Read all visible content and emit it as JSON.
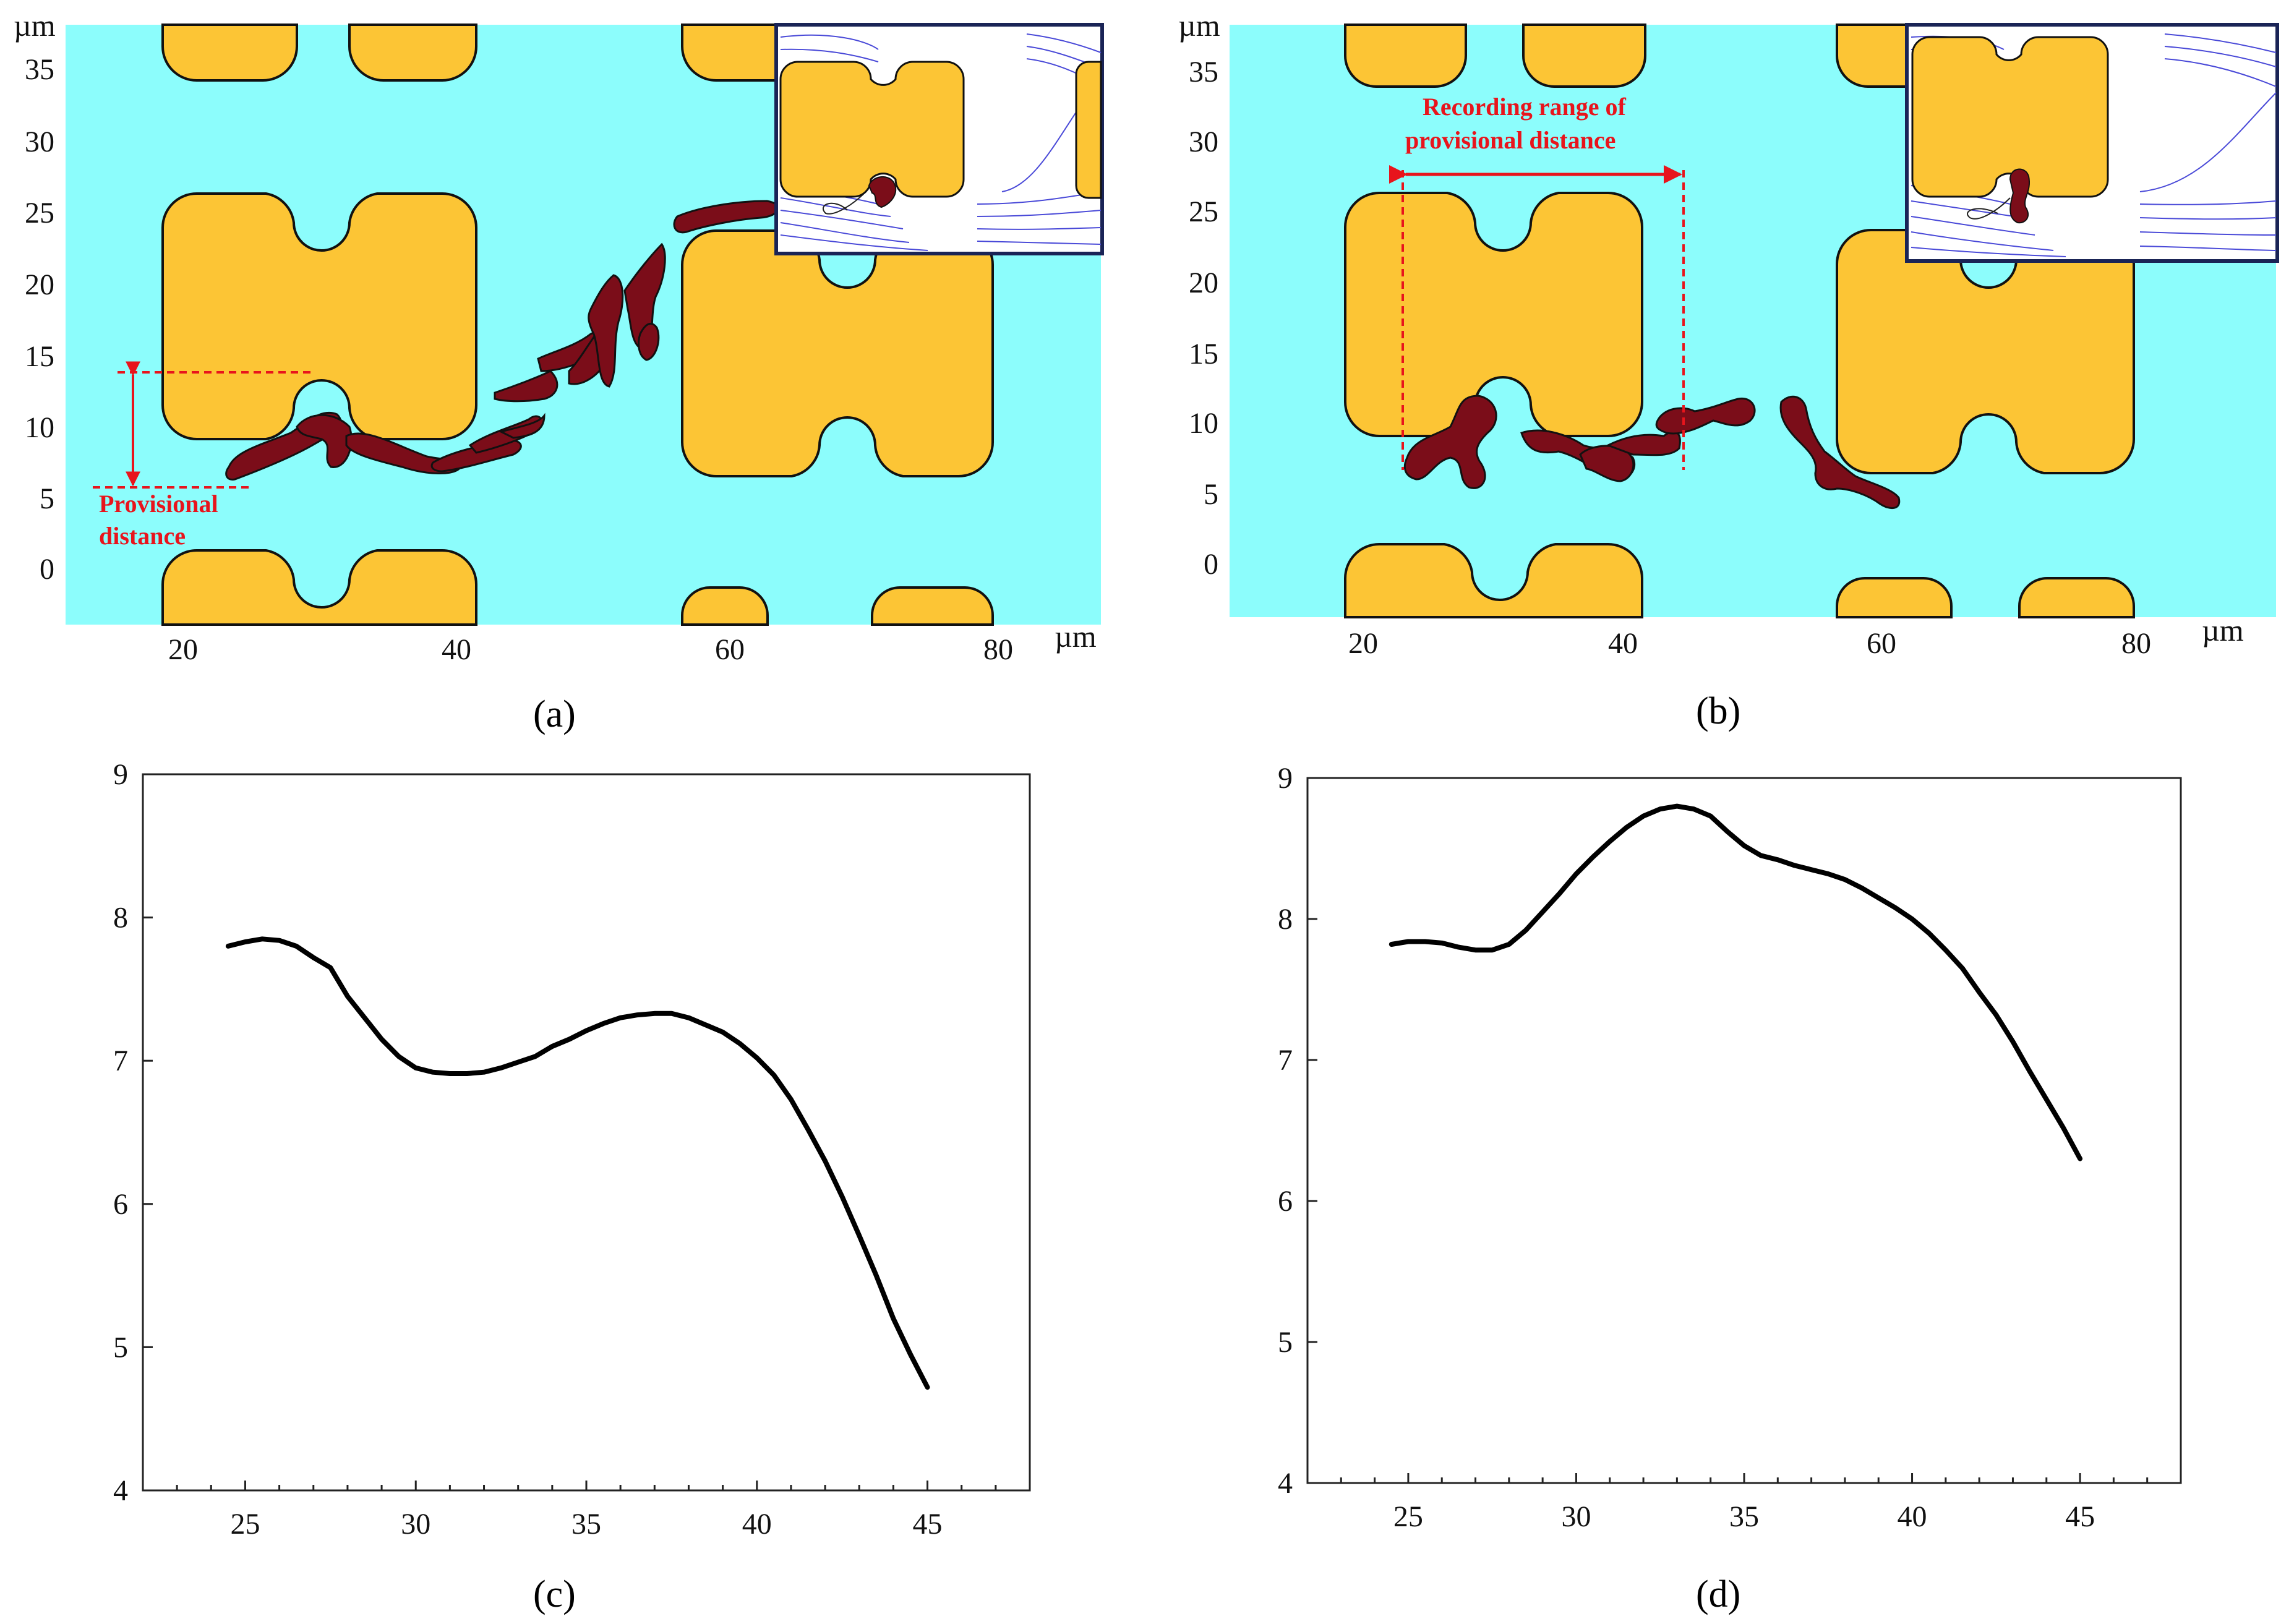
{
  "colors": {
    "fluid": "#8cfdfc",
    "obstacle": "#fcc535",
    "droplet": "#7b0d19",
    "annotation": "#e8141c",
    "streamline": "#4a4ad8",
    "curve": "#000000"
  },
  "chart_data": [
    {
      "type": "diagram",
      "panel": "(a)",
      "unit_x": "µm",
      "unit_y": "µm",
      "xlim": [
        11,
        87
      ],
      "ylim": [
        -4,
        38
      ],
      "x_ticks": [
        "20",
        "40",
        "60",
        "80"
      ],
      "y_ticks": [
        "0",
        "5",
        "10",
        "15",
        "20",
        "25",
        "30",
        "35"
      ],
      "annotation": [
        "Provisional",
        "distance"
      ]
    },
    {
      "type": "diagram",
      "panel": "(b)",
      "unit_x": "µm",
      "unit_y": "µm",
      "xlim": [
        10,
        88
      ],
      "ylim": [
        -4,
        38
      ],
      "x_ticks": [
        "20",
        "40",
        "60",
        "80"
      ],
      "y_ticks": [
        "0",
        "5",
        "10",
        "15",
        "20",
        "25",
        "30",
        "35"
      ],
      "annotation": [
        "Recording range of",
        "provisional distance"
      ]
    },
    {
      "type": "line",
      "panel": "(c)",
      "xlim": [
        22,
        48
      ],
      "ylim": [
        4,
        9
      ],
      "x_ticks": [
        "25",
        "30",
        "35",
        "40",
        "45"
      ],
      "y_ticks": [
        "4",
        "5",
        "6",
        "7",
        "8",
        "9"
      ],
      "series": [
        {
          "x": [
            24.5,
            25.0,
            25.5,
            26.0,
            26.5,
            27.0,
            27.5,
            28.0,
            28.5,
            29.0,
            29.5,
            30.0,
            30.5,
            31.0,
            31.5,
            32.0,
            32.5,
            33.0,
            33.5,
            34.0,
            34.5,
            35.0,
            35.5,
            36.0,
            36.5,
            37.0,
            37.5,
            38.0,
            38.5,
            39.0,
            39.5,
            40.0,
            40.5,
            41.0,
            41.5,
            42.0,
            42.5,
            43.0,
            43.5,
            44.0,
            44.5,
            45.0
          ],
          "y": [
            7.8,
            7.83,
            7.85,
            7.84,
            7.8,
            7.72,
            7.65,
            7.45,
            7.3,
            7.15,
            7.03,
            6.95,
            6.92,
            6.91,
            6.91,
            6.92,
            6.95,
            6.99,
            7.03,
            7.1,
            7.15,
            7.21,
            7.26,
            7.3,
            7.32,
            7.33,
            7.33,
            7.3,
            7.25,
            7.2,
            7.12,
            7.02,
            6.9,
            6.73,
            6.52,
            6.3,
            6.05,
            5.78,
            5.5,
            5.2,
            4.95,
            4.72
          ]
        }
      ]
    },
    {
      "type": "line",
      "panel": "(d)",
      "xlim": [
        22,
        48
      ],
      "ylim": [
        4,
        9
      ],
      "x_ticks": [
        "25",
        "30",
        "35",
        "40",
        "45"
      ],
      "y_ticks": [
        "4",
        "5",
        "6",
        "7",
        "8",
        "9"
      ],
      "series": [
        {
          "x": [
            24.5,
            25.0,
            25.5,
            26.0,
            26.5,
            27.0,
            27.5,
            28.0,
            28.5,
            29.0,
            29.5,
            30.0,
            30.5,
            31.0,
            31.5,
            32.0,
            32.5,
            33.0,
            33.5,
            34.0,
            34.5,
            35.0,
            35.5,
            36.0,
            36.5,
            37.0,
            37.5,
            38.0,
            38.5,
            39.0,
            39.5,
            40.0,
            40.5,
            41.0,
            41.5,
            42.0,
            42.5,
            43.0,
            43.5,
            44.0,
            44.5,
            45.0
          ],
          "y": [
            7.82,
            7.84,
            7.84,
            7.83,
            7.8,
            7.78,
            7.78,
            7.82,
            7.92,
            8.05,
            8.18,
            8.32,
            8.44,
            8.55,
            8.65,
            8.73,
            8.78,
            8.8,
            8.78,
            8.73,
            8.62,
            8.52,
            8.45,
            8.42,
            8.38,
            8.35,
            8.32,
            8.28,
            8.22,
            8.15,
            8.08,
            8.0,
            7.9,
            7.78,
            7.65,
            7.48,
            7.32,
            7.13,
            6.92,
            6.72,
            6.52,
            6.3
          ]
        }
      ]
    }
  ],
  "captions": [
    "(a)",
    "(b)",
    "(c)",
    "(d)"
  ]
}
